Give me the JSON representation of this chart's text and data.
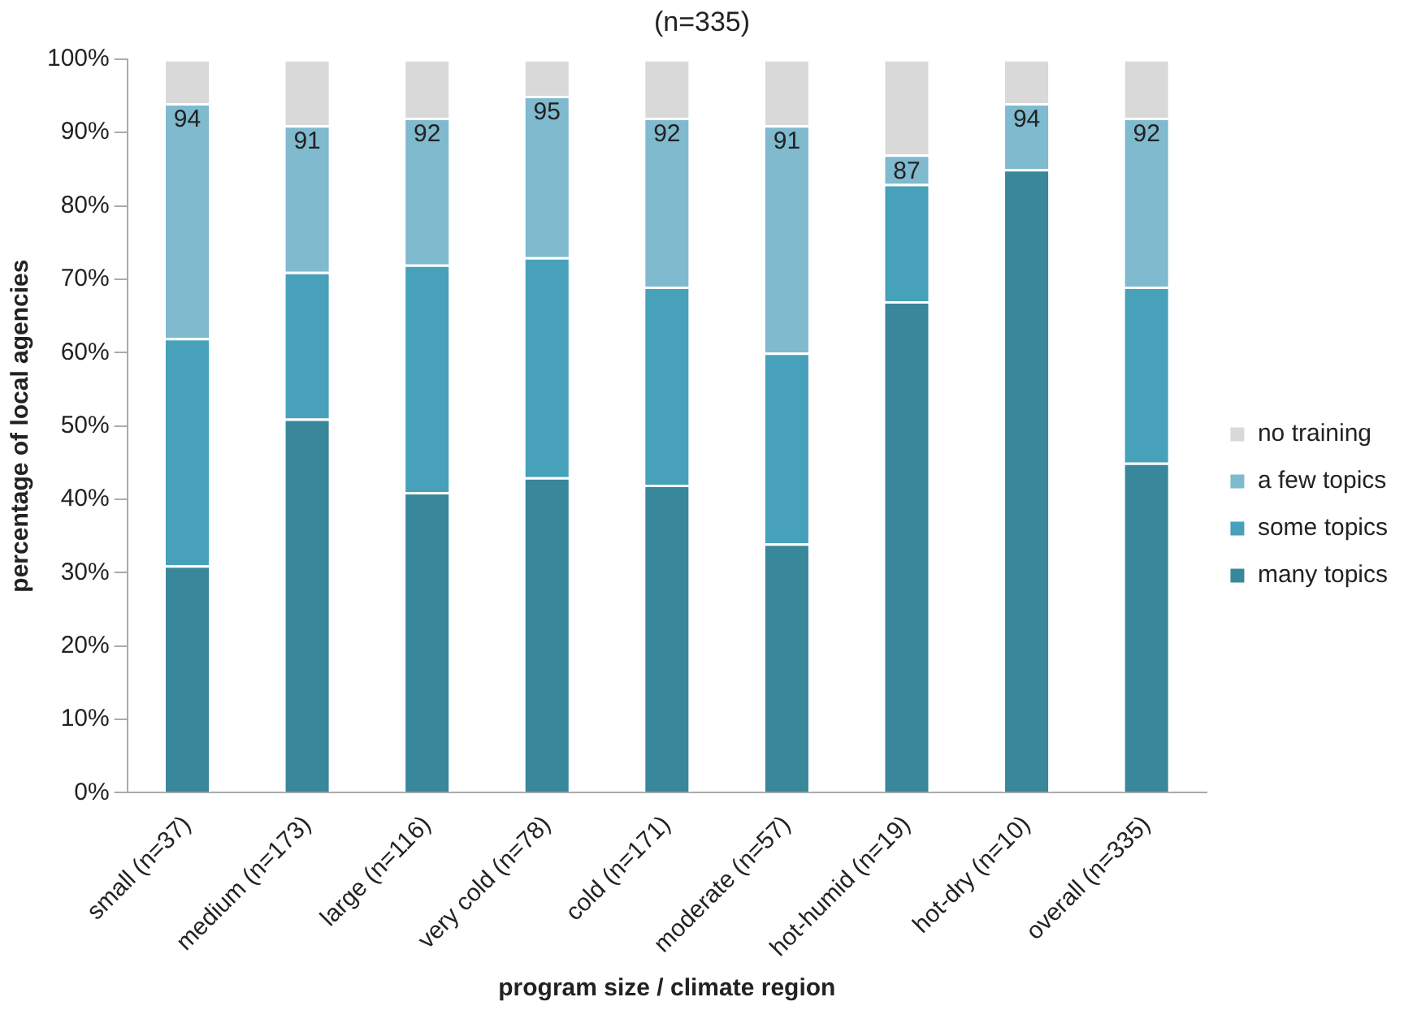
{
  "chart_data": {
    "type": "bar",
    "title": "(n=335)",
    "xlabel": "program size / climate region",
    "ylabel": "percentage of local agencies",
    "categories": [
      "small (n=37)",
      "medium (n=173)",
      "large (n=116)",
      "very cold (n=78)",
      "cold (n=171)",
      "moderate (n=57)",
      "hot-humid (n=19)",
      "hot-dry (n=10)",
      "overall (n=335)"
    ],
    "stacked": true,
    "series": [
      {
        "name": "many topics",
        "color": "#38879a",
        "values": [
          31,
          51,
          41,
          43,
          42,
          34,
          67,
          85,
          45
        ]
      },
      {
        "name": "some topics",
        "color": "#47a1ba",
        "values": [
          31,
          20,
          31,
          30,
          27,
          26,
          16,
          0,
          24
        ]
      },
      {
        "name": "a few topics",
        "color": "#7fbacf",
        "values": [
          32,
          20,
          20,
          22,
          23,
          31,
          4,
          9,
          23
        ]
      },
      {
        "name": "no training",
        "color": "#d9d9d9",
        "values": [
          6,
          9,
          8,
          5,
          8,
          9,
          13,
          6,
          8
        ]
      }
    ],
    "annotations": [
      {
        "text": "94",
        "x": "small (n=37)",
        "y": 94
      },
      {
        "text": "91",
        "x": "medium (n=173)",
        "y": 91
      },
      {
        "text": "92",
        "x": "large (n=116)",
        "y": 92
      },
      {
        "text": "95",
        "x": "very cold (n=78)",
        "y": 95
      },
      {
        "text": "92",
        "x": "cold (n=171)",
        "y": 92
      },
      {
        "text": "91",
        "x": "moderate (n=57)",
        "y": 91
      },
      {
        "text": "87",
        "x": "hot-humid (n=19)",
        "y": 87
      },
      {
        "text": "94",
        "x": "hot-dry (n=10)",
        "y": 94
      },
      {
        "text": "92",
        "x": "overall (n=335)",
        "y": 92
      }
    ],
    "ylim": [
      0,
      100
    ],
    "yticks": [
      {
        "value": 0,
        "label": "0%"
      },
      {
        "value": 10,
        "label": "10%"
      },
      {
        "value": 20,
        "label": "20%"
      },
      {
        "value": 30,
        "label": "30%"
      },
      {
        "value": 40,
        "label": "40%"
      },
      {
        "value": 50,
        "label": "50%"
      },
      {
        "value": 60,
        "label": "60%"
      },
      {
        "value": 70,
        "label": "70%"
      },
      {
        "value": 80,
        "label": "80%"
      },
      {
        "value": 90,
        "label": "90%"
      },
      {
        "value": 100,
        "label": "100%"
      }
    ],
    "grid": false,
    "legend": "right"
  }
}
